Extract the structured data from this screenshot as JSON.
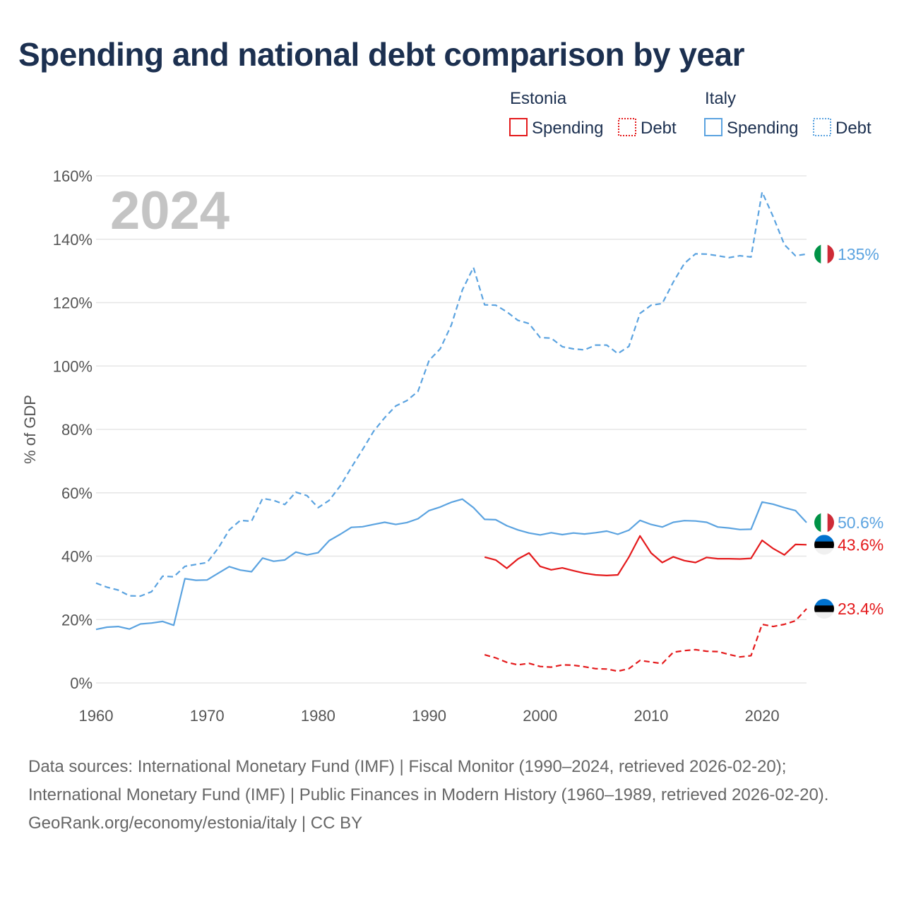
{
  "title": "Spending and national debt comparison by year",
  "colors": {
    "estonia": "#e41a1c",
    "italy": "#5ba3e0",
    "grid": "#e6e6e6",
    "title": "#1c3050"
  },
  "legend": [
    {
      "group": "Estonia",
      "color": "#e41a1c",
      "items": [
        {
          "label": "Spending",
          "style": "solid"
        },
        {
          "label": "Debt",
          "style": "dotted"
        }
      ]
    },
    {
      "group": "Italy",
      "color": "#5ba3e0",
      "items": [
        {
          "label": "Spending",
          "style": "solid"
        },
        {
          "label": "Debt",
          "style": "dotted"
        }
      ]
    }
  ],
  "year_label": "2024",
  "chart_data": {
    "type": "line",
    "title": "Spending and national debt comparison by year",
    "xlabel": "",
    "ylabel": "% of GDP",
    "xlim": [
      1960,
      2024
    ],
    "ylim": [
      0,
      160
    ],
    "x_ticks": [
      1960,
      1970,
      1980,
      1990,
      2000,
      2010,
      2020
    ],
    "y_ticks": [
      0,
      20,
      40,
      60,
      80,
      100,
      120,
      140,
      160
    ],
    "y_tick_labels": [
      "0%",
      "20%",
      "40%",
      "60%",
      "80%",
      "100%",
      "120%",
      "140%",
      "160%"
    ],
    "grid": true,
    "series": [
      {
        "name": "Italy Debt",
        "country": "Italy",
        "kind": "Debt",
        "style": "dashed",
        "color": "#5ba3e0",
        "start_year": 1960,
        "values": [
          31.5,
          30.2,
          29.3,
          27.5,
          27.4,
          28.8,
          33.7,
          33.5,
          36.8,
          37.4,
          38.0,
          42.5,
          48.3,
          51.3,
          51.0,
          58.2,
          57.6,
          56.3,
          60.2,
          59.1,
          55.3,
          57.6,
          62.2,
          68.0,
          73.6,
          79.4,
          83.7,
          87.4,
          89.1,
          92.0,
          101.8,
          105.4,
          112.9,
          124.0,
          131.1,
          119.3,
          119.2,
          117.1,
          114.4,
          113.4,
          109.0,
          108.8,
          106.1,
          105.4,
          105.1,
          106.6,
          106.6,
          103.9,
          106.2,
          116.6,
          119.2,
          119.7,
          126.5,
          132.4,
          135.4,
          135.3,
          134.8,
          134.2,
          134.8,
          134.4,
          154.9,
          147.1,
          138.3,
          134.8,
          135.3
        ],
        "end_label": "135%"
      },
      {
        "name": "Italy Spending",
        "country": "Italy",
        "kind": "Spending",
        "style": "solid",
        "color": "#5ba3e0",
        "start_year": 1960,
        "values": [
          16.9,
          17.6,
          17.8,
          17.0,
          18.6,
          18.9,
          19.4,
          18.2,
          32.9,
          32.4,
          32.5,
          34.6,
          36.7,
          35.6,
          35.1,
          39.4,
          38.4,
          38.8,
          41.3,
          40.4,
          41.1,
          44.9,
          46.9,
          49.1,
          49.3,
          50.0,
          50.7,
          50.0,
          50.6,
          51.8,
          54.4,
          55.5,
          57.0,
          58.0,
          55.3,
          51.6,
          51.5,
          49.6,
          48.3,
          47.3,
          46.7,
          47.4,
          46.8,
          47.3,
          47.0,
          47.4,
          47.9,
          46.9,
          48.2,
          51.3,
          50.0,
          49.2,
          50.7,
          51.2,
          51.1,
          50.7,
          49.2,
          48.9,
          48.4,
          48.5,
          57.1,
          56.4,
          55.3,
          54.4,
          50.6
        ],
        "end_label": "50.6%"
      },
      {
        "name": "Estonia Spending",
        "country": "Estonia",
        "kind": "Spending",
        "style": "solid",
        "color": "#e41a1c",
        "start_year": 1995,
        "values": [
          39.7,
          38.8,
          36.2,
          39.1,
          41.0,
          36.8,
          35.7,
          36.3,
          35.4,
          34.6,
          34.1,
          33.9,
          34.1,
          39.7,
          46.4,
          41.0,
          38.0,
          39.8,
          38.6,
          38.0,
          39.6,
          39.2,
          39.2,
          39.1,
          39.3,
          45.0,
          42.4,
          40.4,
          43.7,
          43.6
        ],
        "end_label": "43.6%"
      },
      {
        "name": "Estonia Debt",
        "country": "Estonia",
        "kind": "Debt",
        "style": "dashed",
        "color": "#e41a1c",
        "start_year": 1995,
        "values": [
          8.9,
          7.9,
          6.5,
          5.7,
          6.2,
          5.2,
          5.0,
          5.7,
          5.6,
          5.1,
          4.5,
          4.4,
          3.7,
          4.5,
          7.1,
          6.6,
          6.1,
          9.7,
          10.2,
          10.5,
          10.0,
          9.9,
          9.0,
          8.2,
          8.6,
          18.5,
          17.8,
          18.5,
          19.6,
          23.4
        ],
        "end_label": "23.4%"
      }
    ]
  },
  "footer": {
    "sources": "Data sources: International Monetary Fund (IMF) | Fiscal Monitor (1990–2024, retrieved 2026-02-20); International Monetary Fund (IMF) | Public Finances in Modern History (1960–1989, retrieved 2026-02-20).",
    "credit": "GeoRank.org/economy/estonia/italy | CC BY"
  }
}
